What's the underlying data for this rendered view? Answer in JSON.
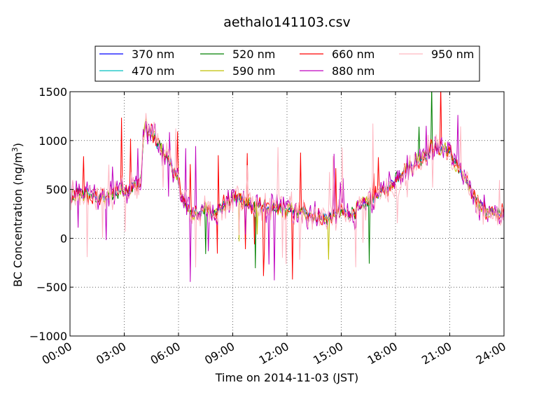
{
  "chart_data": {
    "type": "line",
    "title": "aethalo141103.csv",
    "xlabel": "Time on 2014-11-03 (JST)",
    "ylabel": "BC Concentration (ng/m",
    "ylabel_sup": "3",
    "ylabel_close": ")",
    "ylim": [
      -1000,
      1500
    ],
    "xlim": [
      "00:00",
      "24:00"
    ],
    "yticks": [
      -1000,
      -500,
      0,
      500,
      1000,
      1500
    ],
    "ytick_labels": [
      "−1000",
      "−500",
      "0",
      "500",
      "1000",
      "1500"
    ],
    "xticks": [
      "00:00",
      "03:00",
      "06:00",
      "09:00",
      "12:00",
      "15:00",
      "18:00",
      "21:00",
      "24:00"
    ],
    "grid": true,
    "legend_position": "top",
    "series": [
      {
        "name": "370 nm",
        "color": "#0000ff",
        "noise": 55,
        "spikes": 0.0
      },
      {
        "name": "470 nm",
        "color": "#00bfbf",
        "noise": 65,
        "spikes": 0.0
      },
      {
        "name": "520 nm",
        "color": "#008000",
        "noise": 80,
        "spikes": 0.01
      },
      {
        "name": "590 nm",
        "color": "#bfbf00",
        "noise": 95,
        "spikes": 0.015
      },
      {
        "name": "660 nm",
        "color": "#ff0000",
        "noise": 105,
        "spikes": 0.02
      },
      {
        "name": "880 nm",
        "color": "#bf00bf",
        "noise": 150,
        "spikes": 0.04
      },
      {
        "name": "950 nm",
        "color": "#ffb6c1",
        "noise": 175,
        "spikes": 0.06
      }
    ],
    "baseline_profile": [
      [
        0.0,
        380
      ],
      [
        0.5,
        470
      ],
      [
        1.0,
        440
      ],
      [
        1.5,
        420
      ],
      [
        2.0,
        420
      ],
      [
        2.5,
        470
      ],
      [
        3.0,
        500
      ],
      [
        3.5,
        520
      ],
      [
        3.9,
        560
      ],
      [
        4.1,
        1130
      ],
      [
        4.5,
        1080
      ],
      [
        4.9,
        940
      ],
      [
        5.2,
        870
      ],
      [
        5.6,
        760
      ],
      [
        6.0,
        560
      ],
      [
        6.3,
        360
      ],
      [
        6.7,
        260
      ],
      [
        7.2,
        270
      ],
      [
        7.6,
        300
      ],
      [
        8.0,
        280
      ],
      [
        8.6,
        330
      ],
      [
        9.1,
        420
      ],
      [
        9.6,
        390
      ],
      [
        10.1,
        330
      ],
      [
        10.6,
        320
      ],
      [
        11.2,
        300
      ],
      [
        11.8,
        300
      ],
      [
        12.2,
        280
      ],
      [
        12.7,
        270
      ],
      [
        13.2,
        250
      ],
      [
        13.8,
        210
      ],
      [
        14.3,
        200
      ],
      [
        14.8,
        250
      ],
      [
        15.2,
        260
      ],
      [
        15.7,
        260
      ],
      [
        16.2,
        330
      ],
      [
        16.7,
        400
      ],
      [
        17.2,
        460
      ],
      [
        17.7,
        540
      ],
      [
        18.2,
        650
      ],
      [
        18.7,
        730
      ],
      [
        19.2,
        790
      ],
      [
        19.7,
        870
      ],
      [
        20.2,
        920
      ],
      [
        20.6,
        930
      ],
      [
        21.0,
        870
      ],
      [
        21.4,
        740
      ],
      [
        21.8,
        600
      ],
      [
        22.2,
        470
      ],
      [
        22.6,
        370
      ],
      [
        23.0,
        280
      ],
      [
        23.5,
        240
      ],
      [
        24.0,
        260
      ]
    ]
  }
}
